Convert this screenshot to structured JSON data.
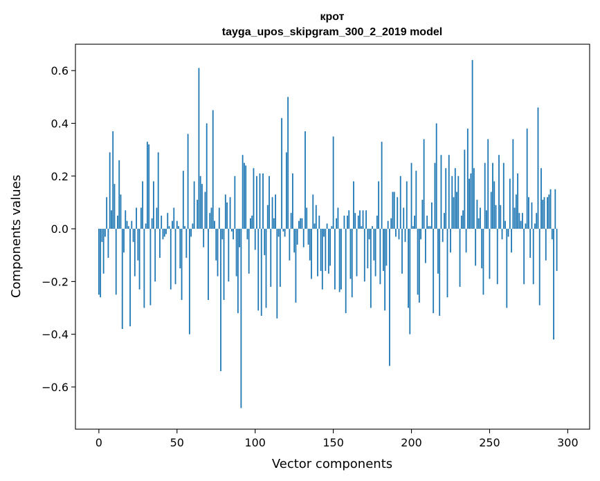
{
  "chart_data": {
    "type": "bar",
    "title": "крот",
    "subtitle": "tayga_upos_skipgram_300_2_2019 model",
    "xlabel": "Vector components",
    "ylabel": "Components values",
    "xlim": [
      -15,
      314
    ],
    "ylim": [
      -0.76,
      0.7
    ],
    "xticks": [
      0,
      50,
      100,
      150,
      200,
      250,
      300
    ],
    "xtick_labels": [
      "0",
      "50",
      "100",
      "150",
      "200",
      "250",
      "300"
    ],
    "yticks": [
      -0.6,
      -0.4,
      -0.2,
      0.0,
      0.2,
      0.4,
      0.6
    ],
    "ytick_labels": [
      "−0.6",
      "−0.4",
      "−0.2",
      "0.0",
      "0.2",
      "0.4",
      "0.6"
    ],
    "bar_color": "#1f77b4",
    "values": [
      -0.25,
      -0.26,
      -0.05,
      -0.17,
      -0.03,
      0.12,
      -0.11,
      0.29,
      0.07,
      0.37,
      0.17,
      -0.25,
      0.05,
      0.26,
      0.13,
      -0.38,
      -0.09,
      0.07,
      0.03,
      0.01,
      -0.37,
      0.03,
      -0.05,
      -0.18,
      0.08,
      -0.12,
      -0.23,
      0.08,
      0.18,
      -0.3,
      0.02,
      0.33,
      0.32,
      -0.29,
      0.04,
      0.18,
      -0.2,
      0.08,
      0.29,
      -0.11,
      0.05,
      -0.04,
      -0.03,
      -0.02,
      0.06,
      0.01,
      -0.23,
      0.03,
      0.08,
      -0.21,
      0.03,
      0.01,
      -0.15,
      -0.27,
      0.22,
      0.01,
      -0.11,
      0.36,
      -0.4,
      -0.03,
      0.02,
      0.18,
      0.0,
      0.11,
      0.61,
      0.2,
      0.17,
      -0.07,
      0.14,
      0.4,
      -0.27,
      0.06,
      0.08,
      0.45,
      0.03,
      -0.12,
      -0.18,
      0.08,
      -0.54,
      -0.04,
      -0.27,
      0.13,
      0.1,
      -0.2,
      0.12,
      -0.01,
      -0.04,
      0.2,
      -0.18,
      -0.32,
      -0.07,
      -0.68,
      0.28,
      0.25,
      0.24,
      -0.04,
      -0.17,
      0.04,
      0.05,
      0.23,
      -0.08,
      0.2,
      -0.31,
      0.21,
      -0.33,
      0.21,
      -0.1,
      -0.3,
      0.09,
      0.2,
      -0.22,
      0.12,
      0.04,
      0.13,
      -0.34,
      -0.03,
      -0.22,
      0.42,
      -0.01,
      -0.03,
      0.29,
      0.5,
      -0.12,
      0.06,
      0.21,
      -0.09,
      -0.28,
      -0.06,
      0.03,
      0.04,
      0.04,
      -0.07,
      0.37,
      0.08,
      -0.06,
      -0.12,
      -0.19,
      0.13,
      0.02,
      0.09,
      -0.18,
      0.05,
      -0.16,
      -0.23,
      -0.03,
      -0.16,
      0.02,
      -0.17,
      -0.14,
      0.01,
      0.35,
      -0.23,
      0.04,
      0.08,
      -0.24,
      -0.23,
      0.0,
      0.05,
      -0.32,
      0.05,
      0.07,
      -0.19,
      -0.26,
      0.18,
      0.06,
      -0.18,
      0.05,
      0.07,
      0.01,
      0.07,
      -0.2,
      0.07,
      -0.15,
      -0.04,
      -0.3,
      0.01,
      -0.12,
      -0.18,
      0.05,
      0.18,
      -0.21,
      0.33,
      -0.16,
      -0.31,
      -0.14,
      0.03,
      -0.52,
      0.04,
      0.14,
      0.14,
      -0.03,
      0.12,
      -0.04,
      0.2,
      -0.17,
      0.08,
      -0.05,
      0.18,
      -0.3,
      -0.4,
      0.25,
      0.01,
      0.05,
      0.22,
      -0.25,
      -0.28,
      -0.04,
      0.11,
      0.34,
      -0.13,
      0.05,
      0.01,
      0.01,
      0.1,
      -0.32,
      0.25,
      0.4,
      -0.17,
      -0.33,
      0.28,
      -0.05,
      0.06,
      0.23,
      -0.26,
      0.28,
      -0.09,
      0.2,
      0.12,
      0.23,
      0.14,
      0.2,
      -0.22,
      0.05,
      0.07,
      0.3,
      -0.09,
      0.38,
      0.19,
      0.21,
      0.64,
      0.23,
      -0.14,
      0.11,
      0.04,
      0.08,
      -0.15,
      -0.25,
      0.25,
      0.07,
      0.34,
      -0.19,
      0.14,
      0.25,
      0.18,
      0.09,
      -0.21,
      0.28,
      0.09,
      -0.04,
      0.25,
      0.03,
      -0.3,
      -0.03,
      0.19,
      -0.09,
      0.34,
      0.08,
      0.13,
      0.21,
      0.06,
      0.03,
      0.06,
      -0.21,
      0.02,
      0.38,
      0.12,
      -0.11,
      0.1,
      -0.21,
      0.02,
      0.06,
      0.46,
      -0.29,
      0.23,
      0.11,
      0.12,
      -0.12,
      0.12,
      0.13,
      0.15,
      -0.04,
      -0.42,
      0.15,
      -0.16
    ]
  }
}
